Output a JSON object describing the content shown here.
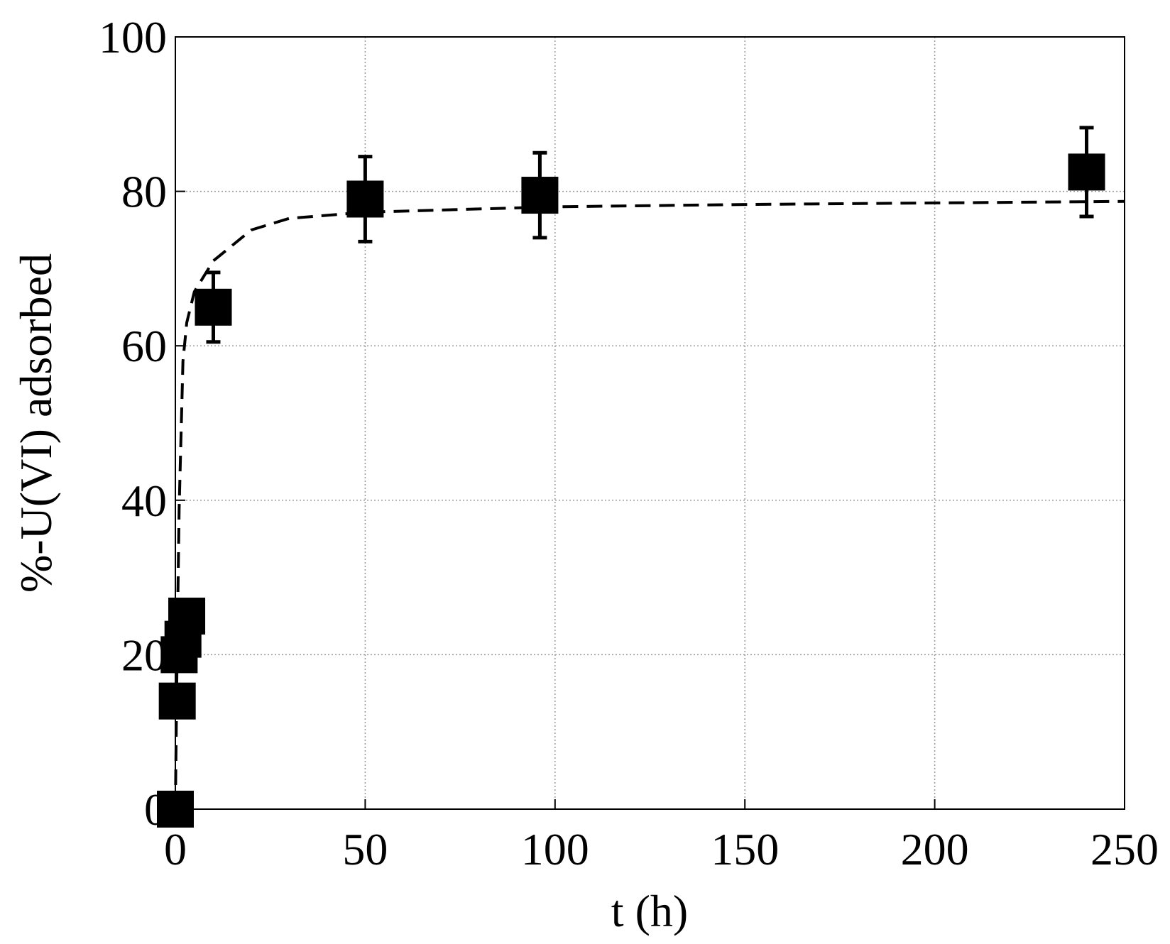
{
  "chart_data": {
    "type": "scatter",
    "xlabel": "t (h)",
    "ylabel": "%-U(VI) adsorbed",
    "xlim": [
      0,
      250
    ],
    "ylim": [
      0,
      100
    ],
    "xticks": [
      0,
      50,
      100,
      150,
      200,
      250
    ],
    "yticks": [
      0,
      20,
      40,
      60,
      80,
      100
    ],
    "grid": true,
    "series": [
      {
        "type": "scatter",
        "color": "#000000",
        "x": [
          0,
          0.5,
          1,
          2,
          3,
          10,
          50,
          96,
          240
        ],
        "values": [
          0,
          14,
          20,
          22,
          25,
          65,
          79,
          79.5,
          82.5
        ],
        "errors": [
          null,
          null,
          null,
          null,
          null,
          4.5,
          5.5,
          5.5,
          5.75
        ]
      },
      {
        "type": "line",
        "color": "#000000",
        "x": [
          0,
          0.5,
          1,
          2,
          3,
          5,
          10,
          20,
          30,
          50,
          100,
          150,
          200,
          250
        ],
        "values": [
          0,
          22,
          39,
          58,
          63,
          67,
          71,
          75,
          76.5,
          77.3,
          78,
          78.3,
          78.5,
          78.7
        ]
      }
    ]
  }
}
